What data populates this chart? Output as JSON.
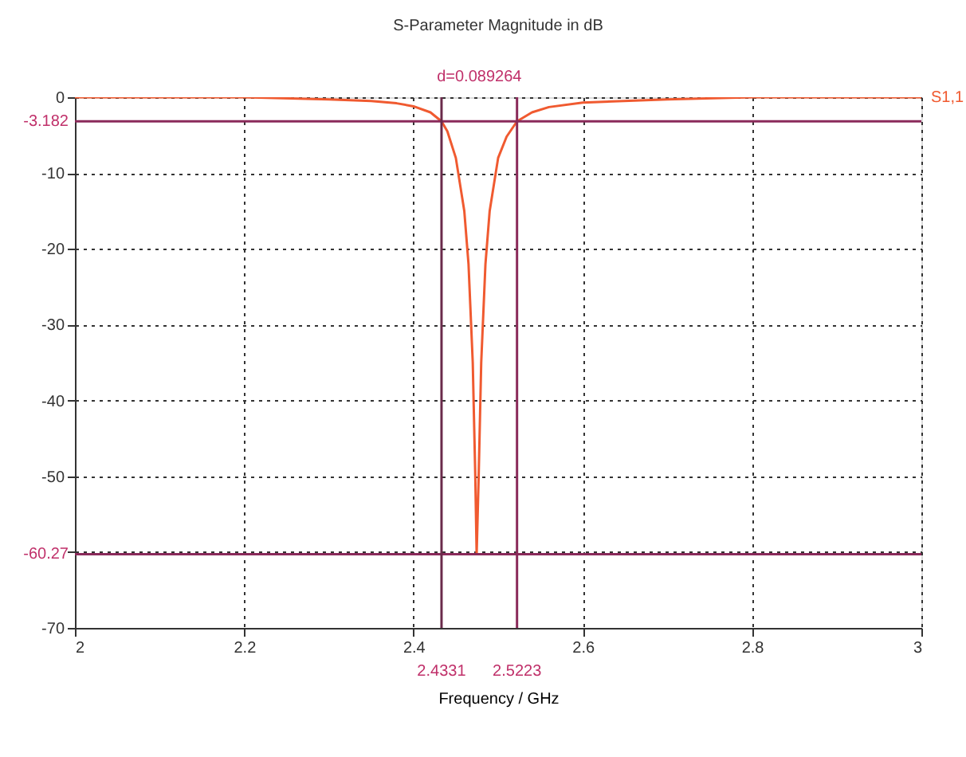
{
  "chart_data": {
    "type": "line",
    "title": "S-Parameter Magnitude in dB",
    "xlabel": "Frequency / GHz",
    "x": [
      2.0,
      2.2,
      2.3,
      2.35,
      2.38,
      2.4,
      2.42,
      2.4331,
      2.44,
      2.45,
      2.46,
      2.465,
      2.47,
      2.473,
      2.4746,
      2.477,
      2.48,
      2.485,
      2.49,
      2.5,
      2.51,
      2.5223,
      2.54,
      2.56,
      2.6,
      2.7,
      2.8,
      3.0
    ],
    "series": [
      {
        "name": "S1,1",
        "color": "#f05a30",
        "values": [
          0,
          0,
          -0.3,
          -0.5,
          -0.8,
          -1.2,
          -2.0,
          -3.182,
          -4.5,
          -8,
          -15,
          -22,
          -35,
          -50,
          -60.27,
          -50,
          -35,
          -22,
          -15,
          -8,
          -5.2,
          -3.182,
          -2.0,
          -1.3,
          -0.7,
          -0.3,
          0,
          0
        ]
      }
    ],
    "xlim": [
      2,
      3
    ],
    "xticks": [
      2,
      2.2,
      2.4,
      2.6,
      2.8,
      3
    ],
    "ylim": [
      -70,
      0
    ],
    "yticks": [
      -70,
      {
        "value": -60,
        "label": null
      },
      -50,
      -40,
      -30,
      -20,
      -10,
      0
    ],
    "grid": true,
    "marker": "none",
    "line_style": "solid",
    "ref_lines": [
      {
        "axis": "y",
        "value": -3.182,
        "label": "-3.182",
        "color": "#8a2a5a"
      },
      {
        "axis": "y",
        "value": -60.27,
        "label": "-60.27",
        "color": "#8a2a5a"
      },
      {
        "axis": "x",
        "value": 2.4331,
        "label": "2.4331",
        "color": "#6a2a4a"
      },
      {
        "axis": "x",
        "value": 2.5223,
        "label": "2.5223",
        "color": "#8a2a5a"
      }
    ],
    "annotations": [
      "d=0.089264"
    ]
  }
}
